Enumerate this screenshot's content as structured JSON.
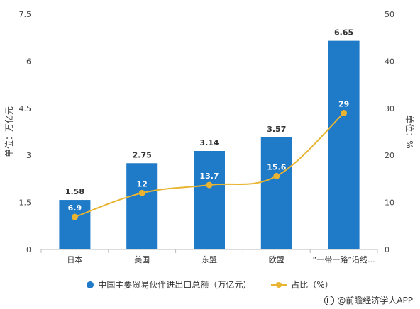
{
  "chart_data": {
    "type": "bar+line",
    "categories": [
      "日本",
      "美国",
      "东盟",
      "欧盟",
      "“一带一路”沿线..."
    ],
    "series": [
      {
        "name": "中国主要贸易伙伴进出口总额（万亿元）",
        "type": "bar",
        "axis": "left",
        "values": [
          1.58,
          2.75,
          3.14,
          3.57,
          6.65
        ]
      },
      {
        "name": "占比（%）",
        "type": "line",
        "axis": "right",
        "values": [
          6.9,
          12,
          13.7,
          15.6,
          29
        ]
      }
    ],
    "ylabel_left": "单位：万亿元",
    "ylabel_right": "单位：%",
    "ylim_left": [
      0,
      7.5
    ],
    "ylim_right": [
      0,
      50
    ],
    "yticks_left": [
      "0",
      "1.5",
      "3",
      "4.5",
      "6",
      "7.5"
    ],
    "yticks_right": [
      "0",
      "10",
      "20",
      "30",
      "40",
      "50"
    ],
    "bar_labels": [
      "1.58",
      "2.75",
      "3.14",
      "3.57",
      "6.65"
    ],
    "line_labels": [
      "6.9",
      "12",
      "13.7",
      "15.6",
      "29"
    ],
    "colors": {
      "bar": "#1f7ac8",
      "line": "#e8b431"
    },
    "legend_position": "bottom",
    "grid": false
  },
  "source": "@前瞻经济学人APP"
}
